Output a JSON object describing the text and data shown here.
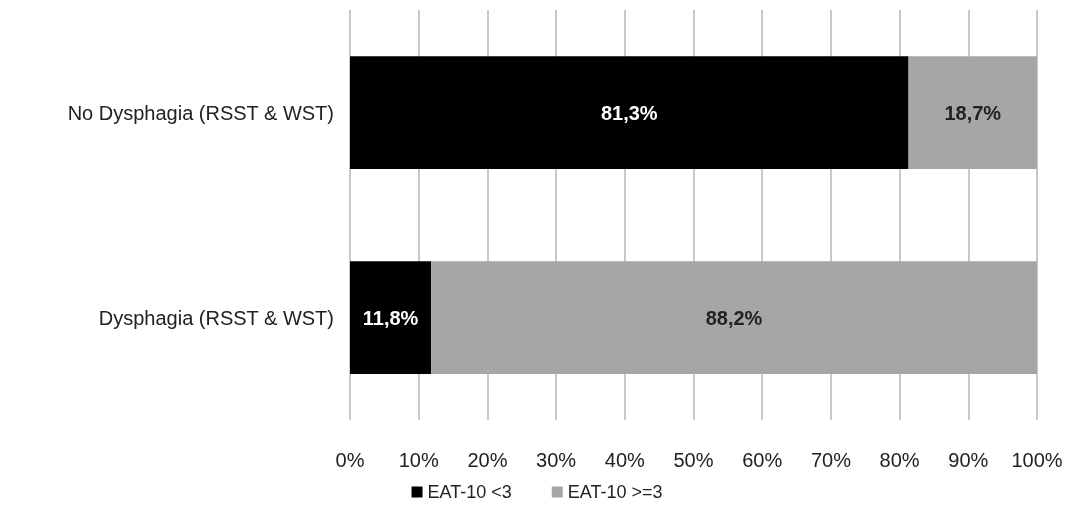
{
  "chart_data": {
    "type": "bar",
    "orientation": "horizontal",
    "stacked": true,
    "categories": [
      "No Dysphagia (RSST & WST)",
      "Dysphagia (RSST & WST)"
    ],
    "series": [
      {
        "name": "EAT-10 <3",
        "color": "#000000",
        "values": [
          81.3,
          11.8
        ],
        "value_labels": [
          "81,3%",
          "11,8%"
        ]
      },
      {
        "name": "EAT-10 >=3",
        "color": "#a6a6a6",
        "values": [
          18.7,
          88.2
        ],
        "value_labels": [
          "18,7%",
          "88,2%"
        ]
      }
    ],
    "xlim": [
      0,
      100
    ],
    "xticks": [
      {
        "value": 0,
        "label": "0%"
      },
      {
        "value": 10,
        "label": "10%"
      },
      {
        "value": 20,
        "label": "20%"
      },
      {
        "value": 30,
        "label": "30%"
      },
      {
        "value": 40,
        "label": "40%"
      },
      {
        "value": 50,
        "label": "50%"
      },
      {
        "value": 60,
        "label": "60%"
      },
      {
        "value": 70,
        "label": "70%"
      },
      {
        "value": 80,
        "label": "80%"
      },
      {
        "value": 90,
        "label": "90%"
      },
      {
        "value": 100,
        "label": "100%"
      }
    ],
    "grid": "x",
    "legend": "bottom"
  }
}
